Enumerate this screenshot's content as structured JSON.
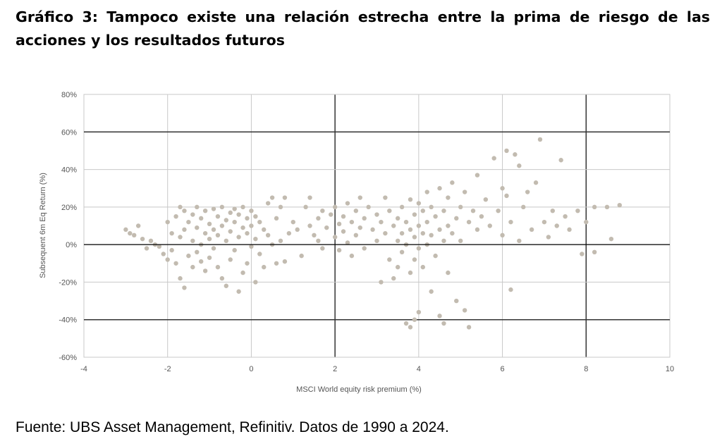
{
  "header": {
    "title": "Gráfico 3: Tampoco existe una relación estrecha entre la prima de riesgo de las acciones y los resultados futuros"
  },
  "footer": {
    "source": "Fuente: UBS Asset Management, Refinitiv. Datos de 1990 a 2024."
  },
  "chart_data": {
    "type": "scatter",
    "xlabel": "MSCI World equity risk premium (%)",
    "ylabel": "Subsequent 6m Eq Return (%)",
    "xlim": [
      -4,
      10
    ],
    "ylim": [
      -60,
      80
    ],
    "xticks": [
      -4,
      -2,
      0,
      2,
      4,
      6,
      8,
      10
    ],
    "xtick_labels": [
      "-4",
      "-2",
      "0",
      "2",
      "4",
      "6",
      "8",
      "10"
    ],
    "yticks": [
      -60,
      -40,
      -20,
      0,
      20,
      40,
      60,
      80
    ],
    "ytick_labels": [
      "-60%",
      "-40%",
      "-20%",
      "0%",
      "20%",
      "40%",
      "60%",
      "80%"
    ],
    "grid": true,
    "colors": {
      "points": "#c2bbb0",
      "grid_light": "#c8c8c8",
      "grid_dark": "#333333",
      "zero_line": "#000000"
    },
    "series": [
      {
        "points": [
          [
            -3.0,
            8
          ],
          [
            -2.9,
            6
          ],
          [
            -2.8,
            5
          ],
          [
            -2.7,
            10
          ],
          [
            -2.6,
            3
          ],
          [
            -2.5,
            -2
          ],
          [
            -2.4,
            2
          ],
          [
            -2.3,
            0
          ],
          [
            -2.2,
            -1
          ],
          [
            -2.1,
            -5
          ],
          [
            -2.0,
            12
          ],
          [
            -2.0,
            -8
          ],
          [
            -1.9,
            6
          ],
          [
            -1.9,
            -3
          ],
          [
            -1.8,
            15
          ],
          [
            -1.8,
            -10
          ],
          [
            -1.7,
            20
          ],
          [
            -1.7,
            4
          ],
          [
            -1.7,
            -18
          ],
          [
            -1.6,
            18
          ],
          [
            -1.6,
            8
          ],
          [
            -1.6,
            -23
          ],
          [
            -1.5,
            12
          ],
          [
            -1.5,
            -6
          ],
          [
            -1.4,
            16
          ],
          [
            -1.4,
            2
          ],
          [
            -1.4,
            -12
          ],
          [
            -1.3,
            20
          ],
          [
            -1.3,
            9
          ],
          [
            -1.3,
            -4
          ],
          [
            -1.2,
            14
          ],
          [
            -1.2,
            0
          ],
          [
            -1.2,
            -9
          ],
          [
            -1.1,
            18
          ],
          [
            -1.1,
            6
          ],
          [
            -1.1,
            -14
          ],
          [
            -1.0,
            11
          ],
          [
            -1.0,
            3
          ],
          [
            -1.0,
            -7
          ],
          [
            -0.9,
            19
          ],
          [
            -0.9,
            8
          ],
          [
            -0.9,
            -2
          ],
          [
            -0.8,
            15
          ],
          [
            -0.8,
            5
          ],
          [
            -0.8,
            -12
          ],
          [
            -0.7,
            20
          ],
          [
            -0.7,
            10
          ],
          [
            -0.7,
            -18
          ],
          [
            -0.6,
            13
          ],
          [
            -0.6,
            2
          ],
          [
            -0.6,
            -22
          ],
          [
            -0.5,
            17
          ],
          [
            -0.5,
            7
          ],
          [
            -0.5,
            -8
          ],
          [
            -0.4,
            19
          ],
          [
            -0.4,
            12
          ],
          [
            -0.4,
            -3
          ],
          [
            -0.3,
            16
          ],
          [
            -0.3,
            4
          ],
          [
            -0.3,
            -25
          ],
          [
            -0.2,
            20
          ],
          [
            -0.2,
            9
          ],
          [
            -0.2,
            -15
          ],
          [
            -0.1,
            14
          ],
          [
            -0.1,
            6
          ],
          [
            -0.1,
            -10
          ],
          [
            0.0,
            18
          ],
          [
            0.0,
            10
          ],
          [
            0.0,
            -1
          ],
          [
            0.1,
            15
          ],
          [
            0.1,
            3
          ],
          [
            0.1,
            -20
          ],
          [
            0.2,
            12
          ],
          [
            0.2,
            -5
          ],
          [
            0.3,
            8
          ],
          [
            0.3,
            -12
          ],
          [
            0.4,
            22
          ],
          [
            0.4,
            5
          ],
          [
            0.5,
            25
          ],
          [
            0.5,
            0
          ],
          [
            0.6,
            14
          ],
          [
            0.6,
            -10
          ],
          [
            0.7,
            20
          ],
          [
            0.7,
            2
          ],
          [
            0.8,
            25
          ],
          [
            0.8,
            -9
          ],
          [
            0.9,
            6
          ],
          [
            1.0,
            12
          ],
          [
            1.1,
            8
          ],
          [
            1.2,
            -6
          ],
          [
            1.3,
            20
          ],
          [
            1.4,
            10
          ],
          [
            1.4,
            25
          ],
          [
            1.5,
            5
          ],
          [
            1.6,
            14
          ],
          [
            1.6,
            2
          ],
          [
            1.7,
            18
          ],
          [
            1.7,
            -2
          ],
          [
            1.8,
            9
          ],
          [
            1.9,
            16
          ],
          [
            2.0,
            4
          ],
          [
            2.0,
            20
          ],
          [
            2.1,
            11
          ],
          [
            2.1,
            -3
          ],
          [
            2.2,
            15
          ],
          [
            2.2,
            7
          ],
          [
            2.3,
            22
          ],
          [
            2.3,
            1
          ],
          [
            2.4,
            12
          ],
          [
            2.4,
            -6
          ],
          [
            2.5,
            18
          ],
          [
            2.5,
            5
          ],
          [
            2.6,
            25
          ],
          [
            2.6,
            9
          ],
          [
            2.7,
            14
          ],
          [
            2.7,
            -2
          ],
          [
            2.8,
            20
          ],
          [
            2.9,
            8
          ],
          [
            3.0,
            16
          ],
          [
            3.0,
            2
          ],
          [
            3.1,
            12
          ],
          [
            3.1,
            -20
          ],
          [
            3.2,
            25
          ],
          [
            3.2,
            6
          ],
          [
            3.3,
            18
          ],
          [
            3.3,
            -8
          ],
          [
            3.4,
            10
          ],
          [
            3.4,
            -18
          ],
          [
            3.5,
            14
          ],
          [
            3.5,
            2
          ],
          [
            3.5,
            -12
          ],
          [
            3.6,
            20
          ],
          [
            3.6,
            6
          ],
          [
            3.6,
            -4
          ],
          [
            3.7,
            12
          ],
          [
            3.7,
            0
          ],
          [
            3.7,
            -42
          ],
          [
            3.8,
            24
          ],
          [
            3.8,
            8
          ],
          [
            3.8,
            -15
          ],
          [
            3.8,
            -44
          ],
          [
            3.9,
            16
          ],
          [
            3.9,
            4
          ],
          [
            3.9,
            -8
          ],
          [
            3.9,
            -40
          ],
          [
            4.0,
            22
          ],
          [
            4.0,
            10
          ],
          [
            4.0,
            -2
          ],
          [
            4.0,
            -36
          ],
          [
            4.1,
            18
          ],
          [
            4.1,
            6
          ],
          [
            4.1,
            -12
          ],
          [
            4.2,
            28
          ],
          [
            4.2,
            12
          ],
          [
            4.2,
            0
          ],
          [
            4.3,
            20
          ],
          [
            4.3,
            5
          ],
          [
            4.3,
            -25
          ],
          [
            4.4,
            15
          ],
          [
            4.4,
            -6
          ],
          [
            4.5,
            30
          ],
          [
            4.5,
            8
          ],
          [
            4.5,
            -38
          ],
          [
            4.6,
            18
          ],
          [
            4.6,
            2
          ],
          [
            4.6,
            -42
          ],
          [
            4.7,
            25
          ],
          [
            4.7,
            10
          ],
          [
            4.7,
            -15
          ],
          [
            4.8,
            33
          ],
          [
            4.8,
            6
          ],
          [
            4.9,
            14
          ],
          [
            4.9,
            -30
          ],
          [
            5.0,
            20
          ],
          [
            5.0,
            2
          ],
          [
            5.1,
            28
          ],
          [
            5.1,
            -35
          ],
          [
            5.2,
            12
          ],
          [
            5.2,
            -44
          ],
          [
            5.3,
            18
          ],
          [
            5.4,
            37
          ],
          [
            5.4,
            8
          ],
          [
            5.5,
            15
          ],
          [
            5.6,
            24
          ],
          [
            5.7,
            10
          ],
          [
            5.8,
            46
          ],
          [
            5.9,
            18
          ],
          [
            6.0,
            30
          ],
          [
            6.0,
            5
          ],
          [
            6.1,
            50
          ],
          [
            6.1,
            26
          ],
          [
            6.2,
            12
          ],
          [
            6.2,
            -24
          ],
          [
            6.3,
            48
          ],
          [
            6.4,
            42
          ],
          [
            6.4,
            2
          ],
          [
            6.5,
            20
          ],
          [
            6.6,
            28
          ],
          [
            6.7,
            8
          ],
          [
            6.8,
            33
          ],
          [
            6.9,
            56
          ],
          [
            7.0,
            12
          ],
          [
            7.1,
            4
          ],
          [
            7.2,
            18
          ],
          [
            7.3,
            10
          ],
          [
            7.4,
            45
          ],
          [
            7.5,
            15
          ],
          [
            7.6,
            8
          ],
          [
            7.8,
            18
          ],
          [
            7.9,
            -5
          ],
          [
            8.0,
            12
          ],
          [
            8.2,
            20
          ],
          [
            8.2,
            -4
          ],
          [
            8.5,
            20
          ],
          [
            8.6,
            3
          ],
          [
            8.8,
            21
          ]
        ]
      }
    ]
  }
}
